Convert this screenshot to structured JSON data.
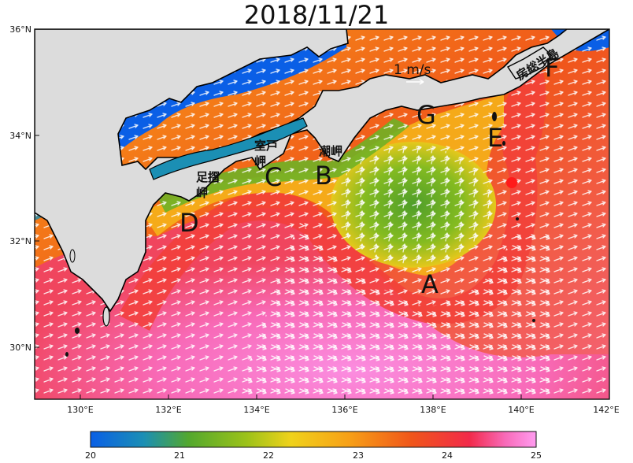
{
  "title": "2018/11/21",
  "map": {
    "lon_ticks": [
      "130°E",
      "132°E",
      "134°E",
      "136°E",
      "138°E",
      "140°E",
      "142°E"
    ],
    "lat_ticks": [
      "36°N",
      "34°N",
      "32°N",
      "30°N"
    ],
    "region_labels": [
      {
        "id": "A",
        "text": "A"
      },
      {
        "id": "B",
        "text": "B"
      },
      {
        "id": "C",
        "text": "C"
      },
      {
        "id": "D",
        "text": "D"
      },
      {
        "id": "E",
        "text": "E"
      },
      {
        "id": "F",
        "text": "F"
      },
      {
        "id": "G",
        "text": "G"
      }
    ],
    "place_names": {
      "ashizuri_1": "足摺",
      "ashizuri_2": "岬",
      "muroto_1": "室戸",
      "muroto_2": "岬",
      "shiono": "潮岬",
      "boso": "房総半島"
    },
    "vector_scale_label": "1 m/s",
    "marker_color": "#ff1a1a",
    "land_color": "#dcdcdc"
  },
  "colorbar": {
    "ticks": [
      "20",
      "21",
      "22",
      "23",
      "24",
      "25"
    ],
    "colors": [
      "#0a5fe6",
      "#1b8fb4",
      "#53a82e",
      "#9cc219",
      "#f0d21b",
      "#f7a017",
      "#f0561a",
      "#f22a4a",
      "#f86ab8",
      "#ff9cf0"
    ]
  }
}
